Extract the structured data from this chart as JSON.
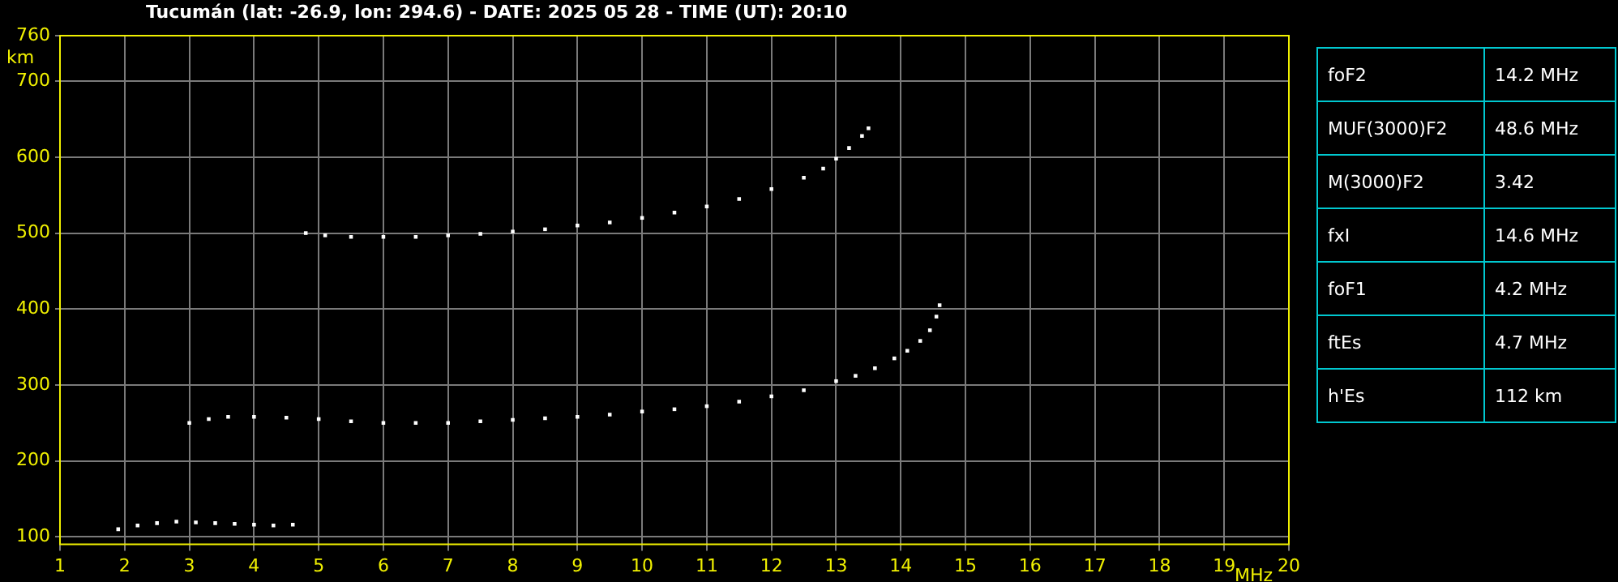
{
  "chart_data": [
    {
      "type": "scatter",
      "title": "Tucumán (lat: -26.9, lon: 294.6) - DATE: 2025 05 28 - TIME (UT): 20:10",
      "xlabel": "MHz",
      "ylabel": "km",
      "xlim": [
        1,
        20
      ],
      "xticks": [
        1,
        2,
        3,
        4,
        5,
        6,
        7,
        8,
        9,
        10,
        11,
        12,
        13,
        14,
        15,
        16,
        17,
        18,
        19,
        20
      ],
      "ylim": [
        90,
        760
      ],
      "yticks": [
        100,
        200,
        300,
        400,
        500,
        600,
        700,
        760
      ],
      "grid": true,
      "legend": false,
      "marker": "square",
      "series": [
        {
          "color": "#ffffff",
          "x": [
            1.9,
            2.2,
            2.5,
            2.8,
            3.1,
            3.4,
            3.7,
            4.0,
            4.3,
            4.6
          ],
          "values": [
            110,
            115,
            118,
            120,
            119,
            118,
            117,
            116,
            115,
            116
          ]
        },
        {
          "color": "#ffffff",
          "x": [
            3.0,
            3.3,
            3.6,
            4.0,
            4.5,
            5.0,
            5.5,
            6.0,
            6.5,
            7.0,
            7.5,
            8.0,
            8.5,
            9.0,
            9.5,
            10.0,
            10.5,
            11.0,
            11.5,
            12.0,
            12.5,
            13.0,
            13.3,
            13.6,
            13.9,
            14.1,
            14.3,
            14.45,
            14.55,
            14.6
          ],
          "values": [
            250,
            255,
            258,
            258,
            257,
            255,
            252,
            250,
            250,
            250,
            252,
            254,
            256,
            258,
            261,
            265,
            268,
            272,
            278,
            285,
            293,
            305,
            312,
            322,
            335,
            345,
            358,
            372,
            390,
            405
          ]
        },
        {
          "color": "#ffffff",
          "x": [
            4.8,
            5.1,
            5.5,
            6.0,
            6.5,
            7.0,
            7.5,
            8.0,
            8.5,
            9.0,
            9.5,
            10.0,
            10.5,
            11.0,
            11.5,
            12.0,
            12.5,
            12.8,
            13.0,
            13.2,
            13.4,
            13.5
          ],
          "values": [
            500,
            497,
            495,
            495,
            495,
            497,
            499,
            502,
            505,
            510,
            514,
            520,
            527,
            535,
            545,
            558,
            573,
            585,
            598,
            612,
            628,
            638
          ]
        }
      ]
    },
    {
      "type": "other",
      "annotations": [
        "foF2",
        "14.2 MHz",
        "MUF(3000)F2",
        "48.6 MHz",
        "M(3000)F2",
        "3.42",
        "fxI",
        "14.6 MHz",
        "foF1",
        "4.2 MHz",
        "ftEs",
        "4.7 MHz",
        "h'Es",
        "112 km"
      ]
    }
  ]
}
